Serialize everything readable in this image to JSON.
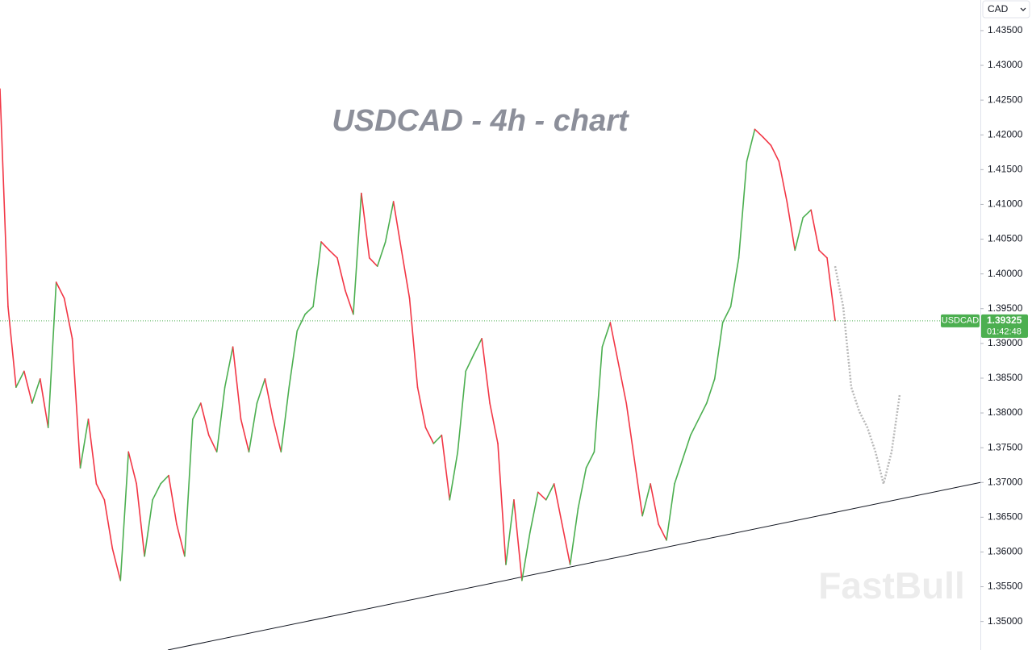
{
  "chart_data": {
    "type": "line",
    "title": "USDCAD - 4h - chart",
    "currency": "CAD",
    "watermark": "FastBull",
    "symbol": "USDCAD",
    "last_price": 1.39325,
    "countdown": "01:42:48",
    "ylim": [
      1.3459,
      1.4394
    ],
    "yticks": [
      {
        "value": 1.35,
        "label": "1.35000"
      },
      {
        "value": 1.355,
        "label": "1.35500"
      },
      {
        "value": 1.36,
        "label": "1.36000"
      },
      {
        "value": 1.365,
        "label": "1.36500"
      },
      {
        "value": 1.37,
        "label": "1.37000"
      },
      {
        "value": 1.375,
        "label": "1.37500"
      },
      {
        "value": 1.38,
        "label": "1.38000"
      },
      {
        "value": 1.385,
        "label": "1.38500"
      },
      {
        "value": 1.39,
        "label": "1.39000"
      },
      {
        "value": 1.395,
        "label": "1.39500"
      },
      {
        "value": 1.4,
        "label": "1.40000"
      },
      {
        "value": 1.405,
        "label": "1.40500"
      },
      {
        "value": 1.41,
        "label": "1.41000"
      },
      {
        "value": 1.415,
        "label": "1.41500"
      },
      {
        "value": 1.42,
        "label": "1.42000"
      },
      {
        "value": 1.425,
        "label": "1.42500"
      },
      {
        "value": 1.43,
        "label": "1.43000"
      },
      {
        "value": 1.435,
        "label": "1.43500"
      }
    ],
    "up_color": "#4caf50",
    "down_color": "#f23645",
    "values": [
      1.4266,
      1.3953,
      1.3837,
      1.386,
      1.3814,
      1.3849,
      1.3779,
      1.3988,
      1.3965,
      1.3907,
      1.3721,
      1.3791,
      1.3698,
      1.3675,
      1.3605,
      1.3559,
      1.3744,
      1.3698,
      1.3594,
      1.3675,
      1.3698,
      1.371,
      1.364,
      1.3594,
      1.3791,
      1.3814,
      1.3768,
      1.3744,
      1.3837,
      1.3895,
      1.3791,
      1.3744,
      1.3814,
      1.3849,
      1.3791,
      1.3744,
      1.3837,
      1.3918,
      1.3942,
      1.3953,
      1.4046,
      1.4034,
      1.4023,
      1.3976,
      1.3942,
      1.4116,
      1.4023,
      1.4011,
      1.4046,
      1.4104,
      1.4034,
      1.3965,
      1.3837,
      1.3779,
      1.3756,
      1.3768,
      1.3675,
      1.3744,
      1.386,
      1.3884,
      1.3907,
      1.3814,
      1.3756,
      1.3582,
      1.3675,
      1.3559,
      1.3628,
      1.3686,
      1.3675,
      1.3698,
      1.364,
      1.3582,
      1.3663,
      1.3721,
      1.3744,
      1.3895,
      1.393,
      1.3872,
      1.3814,
      1.3733,
      1.3652,
      1.3698,
      1.364,
      1.3617,
      1.3698,
      1.3733,
      1.3768,
      1.3791,
      1.3814,
      1.3849,
      1.393,
      1.3953,
      1.4023,
      1.4162,
      1.4208,
      1.4197,
      1.4185,
      1.4162,
      1.4104,
      1.4034,
      1.4081,
      1.4092,
      1.4034,
      1.4023,
      1.3933
    ],
    "projection": {
      "color": "#b8b8b8",
      "values": [
        1.4011,
        1.3953,
        1.3837,
        1.3802,
        1.3779,
        1.3744,
        1.3698,
        1.3744,
        1.3826
      ]
    },
    "trendline": {
      "color": "#131722",
      "values": [
        1.3459,
        1.37
      ]
    }
  }
}
